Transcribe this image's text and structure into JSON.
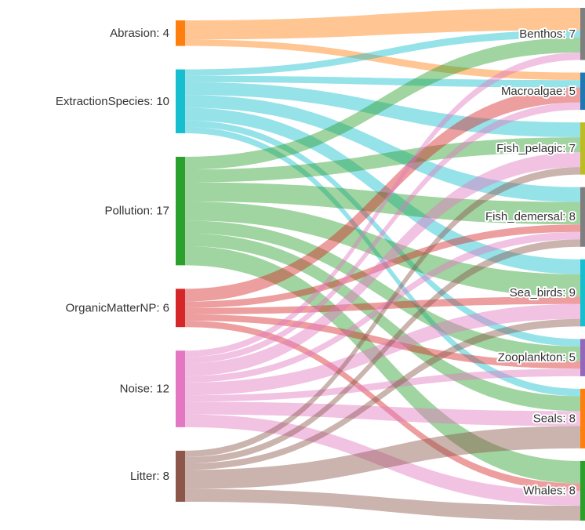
{
  "chart_data": {
    "type": "sankey",
    "source_nodes": [
      {
        "id": "Abrasion",
        "label": "Abrasion: 4",
        "value": 4,
        "color": "#ff7f0e"
      },
      {
        "id": "ExtractionSpecies",
        "label": "ExtractionSpecies: 10",
        "value": 10,
        "color": "#17becf"
      },
      {
        "id": "Pollution",
        "label": "Pollution: 17",
        "value": 17,
        "color": "#2ca02c"
      },
      {
        "id": "OrganicMatterNP",
        "label": "OrganicMatterNP: 6",
        "value": 6,
        "color": "#d62728"
      },
      {
        "id": "Noise",
        "label": "Noise: 12",
        "value": 12,
        "color": "#e377c2"
      },
      {
        "id": "Litter",
        "label": "Litter: 8",
        "value": 8,
        "color": "#8c564b"
      }
    ],
    "target_nodes": [
      {
        "id": "Benthos",
        "label": "Benthos: 7",
        "value": 7,
        "color": "#7f7f7f"
      },
      {
        "id": "Macroalgae",
        "label": "Macroalgae: 5",
        "value": 5,
        "color": "#1f77b4"
      },
      {
        "id": "Fish_pelagic",
        "label": "Fish_pelagic: 7",
        "value": 7,
        "color": "#bcbd22"
      },
      {
        "id": "Fish_demersal",
        "label": "Fish_demersal: 8",
        "value": 8,
        "color": "#7f7f7f"
      },
      {
        "id": "Sea_birds",
        "label": "Sea_birds: 9",
        "value": 9,
        "color": "#17becf"
      },
      {
        "id": "Zooplankton",
        "label": "Zooplankton: 5",
        "value": 5,
        "color": "#9467bd"
      },
      {
        "id": "Seals",
        "label": "Seals: 8",
        "value": 8,
        "color": "#ff7f0e"
      },
      {
        "id": "Whales",
        "label": "Whales: 8",
        "value": 8,
        "color": "#2ca02c"
      }
    ],
    "links": [
      {
        "source": "Abrasion",
        "target": "Benthos",
        "value": 3
      },
      {
        "source": "Abrasion",
        "target": "Macroalgae",
        "value": 1
      },
      {
        "source": "ExtractionSpecies",
        "target": "Benthos",
        "value": 1
      },
      {
        "source": "ExtractionSpecies",
        "target": "Macroalgae",
        "value": 1
      },
      {
        "source": "ExtractionSpecies",
        "target": "Fish_pelagic",
        "value": 2
      },
      {
        "source": "ExtractionSpecies",
        "target": "Fish_demersal",
        "value": 2
      },
      {
        "source": "ExtractionSpecies",
        "target": "Sea_birds",
        "value": 2
      },
      {
        "source": "ExtractionSpecies",
        "target": "Zooplankton",
        "value": 1
      },
      {
        "source": "ExtractionSpecies",
        "target": "Seals",
        "value": 1
      },
      {
        "source": "Pollution",
        "target": "Benthos",
        "value": 2
      },
      {
        "source": "Pollution",
        "target": "Fish_pelagic",
        "value": 2
      },
      {
        "source": "Pollution",
        "target": "Fish_demersal",
        "value": 3
      },
      {
        "source": "Pollution",
        "target": "Sea_birds",
        "value": 3
      },
      {
        "source": "Pollution",
        "target": "Zooplankton",
        "value": 2
      },
      {
        "source": "Pollution",
        "target": "Seals",
        "value": 2
      },
      {
        "source": "Pollution",
        "target": "Whales",
        "value": 3
      },
      {
        "source": "OrganicMatterNP",
        "target": "Macroalgae",
        "value": 2
      },
      {
        "source": "OrganicMatterNP",
        "target": "Fish_demersal",
        "value": 1
      },
      {
        "source": "OrganicMatterNP",
        "target": "Sea_birds",
        "value": 1
      },
      {
        "source": "OrganicMatterNP",
        "target": "Zooplankton",
        "value": 1
      },
      {
        "source": "OrganicMatterNP",
        "target": "Whales",
        "value": 1
      },
      {
        "source": "Noise",
        "target": "Benthos",
        "value": 1
      },
      {
        "source": "Noise",
        "target": "Macroalgae",
        "value": 1
      },
      {
        "source": "Noise",
        "target": "Fish_pelagic",
        "value": 2
      },
      {
        "source": "Noise",
        "target": "Fish_demersal",
        "value": 1
      },
      {
        "source": "Noise",
        "target": "Sea_birds",
        "value": 2
      },
      {
        "source": "Noise",
        "target": "Zooplankton",
        "value": 1
      },
      {
        "source": "Noise",
        "target": "Seals",
        "value": 2
      },
      {
        "source": "Noise",
        "target": "Whales",
        "value": 2
      },
      {
        "source": "Litter",
        "target": "Fish_pelagic",
        "value": 1
      },
      {
        "source": "Litter",
        "target": "Fish_demersal",
        "value": 1
      },
      {
        "source": "Litter",
        "target": "Sea_birds",
        "value": 1
      },
      {
        "source": "Litter",
        "target": "Seals",
        "value": 3
      },
      {
        "source": "Litter",
        "target": "Whales",
        "value": 2
      }
    ]
  }
}
